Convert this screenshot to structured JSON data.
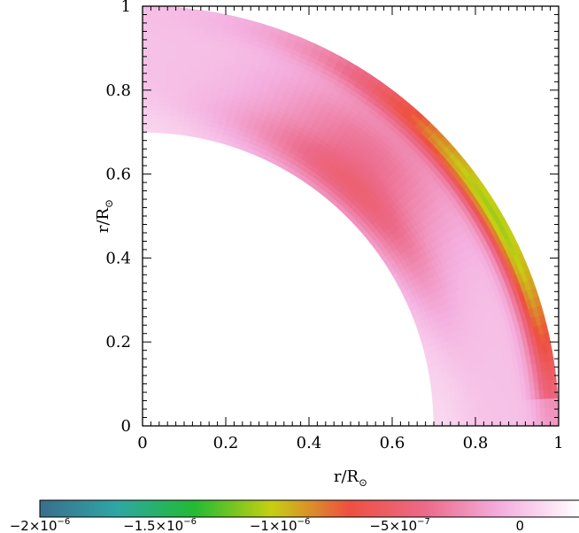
{
  "chart_data": {
    "type": "heatmap",
    "title": "",
    "xlabel": "r/R",
    "xlabel_sub": "⊙",
    "ylabel": "r/R",
    "ylabel_sub": "⊙",
    "xlim": [
      0,
      1
    ],
    "ylim": [
      0,
      1
    ],
    "x_ticks": [
      0,
      0.2,
      0.4,
      0.6,
      0.8,
      1
    ],
    "x_tick_labels": [
      "0",
      "0.2",
      "0.4",
      "0.6",
      "0.8",
      "1"
    ],
    "y_ticks": [
      0,
      0.2,
      0.4,
      0.6,
      0.8,
      1
    ],
    "y_tick_labels": [
      "0",
      "0.2",
      "0.4",
      "0.6",
      "0.8",
      "1"
    ],
    "domain": {
      "shape": "quarter-annulus",
      "inner_radius": 0.7,
      "outer_radius": 1.0
    },
    "features": [
      {
        "kind": "negative-band",
        "near_radius": 0.75,
        "angle_deg_range": [
          20,
          75
        ],
        "approx_value": -5e-07
      },
      {
        "kind": "strong-negative-band",
        "near_radius": 0.985,
        "angle_deg_range": [
          5,
          60
        ],
        "approx_value": -1.1e-06
      }
    ],
    "colorbar": {
      "range": [
        -2e-06,
        2.5e-07
      ],
      "ticks": [
        -2e-06,
        -1.5e-06,
        -1e-06,
        -5e-07,
        0
      ],
      "tick_labels": [
        "−2×10",
        "−1.5×10",
        "−1×10",
        "−5×10",
        "0"
      ],
      "tick_exponents": [
        "−6",
        "−6",
        "−6",
        "−7",
        ""
      ],
      "colors": [
        "#3b6d8c",
        "#2ea7a5",
        "#22bb33",
        "#c5d012",
        "#ee5040",
        "#ec6a8a",
        "#f4b0e0",
        "#ffffff"
      ]
    },
    "grid": false,
    "legend": "none"
  }
}
